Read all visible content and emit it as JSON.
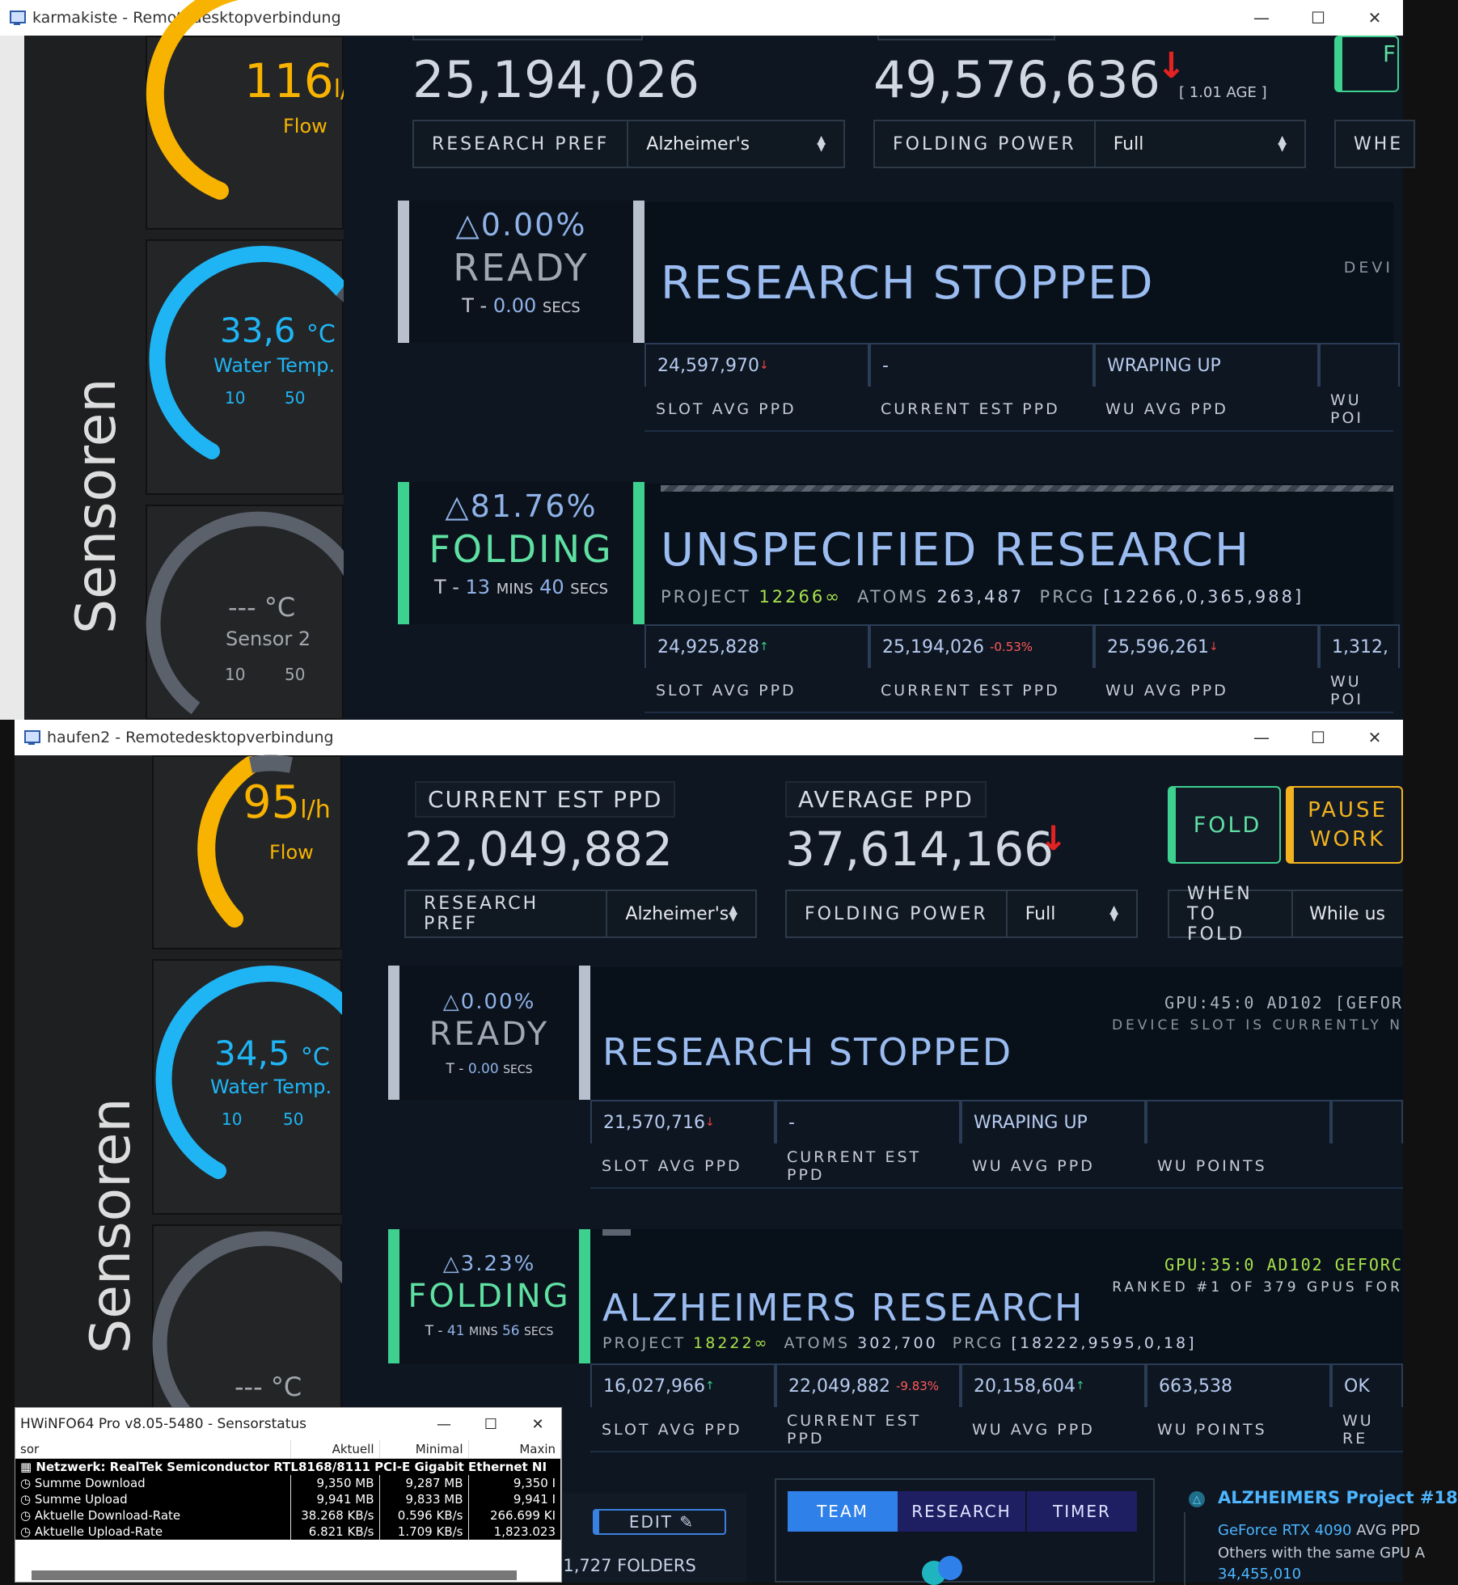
{
  "top_window": {
    "title": "karmakiste - Remotedesktopverbindung",
    "sensors": {
      "col_label": "Sensoren",
      "flow": {
        "value": "116",
        "unit": "l/h",
        "label": "Flow",
        "level": 0.7
      },
      "water": {
        "value": "33,6",
        "unit": "°C",
        "label": "Water Temp.",
        "tick_min": "10",
        "tick_max": "50",
        "level": 0.59
      },
      "sensor2": {
        "value": "---",
        "unit": "°C",
        "label": "Sensor 2",
        "tick_min": "10",
        "tick_max": "50"
      }
    },
    "current_ppd": "25,194,026",
    "average_ppd": "49,576,636",
    "age_note": "[ 1.01 AGE ]",
    "research_pref": {
      "label": "RESEARCH PREF",
      "value": "Alzheimer's"
    },
    "folding_power": {
      "label": "FOLDING POWER",
      "value": "Full"
    },
    "when_to_fold_partial": "WHE",
    "fold_partial": "F",
    "slot1": {
      "pct": "0.00%",
      "state": "READY",
      "eta_prefix": "T - ",
      "eta_value": "0.00",
      "eta_unit": "SECS",
      "title": "RESEARCH STOPPED",
      "device_partial": "DEVI",
      "stats": [
        "24,597,970",
        "-",
        "WRAPING UP",
        ""
      ],
      "labels": [
        "SLOT AVG PPD",
        "CURRENT EST PPD",
        "WU AVG PPD",
        "WU POI"
      ]
    },
    "slot2": {
      "pct": "81.76%",
      "state": "FOLDING",
      "eta_prefix": "T - ",
      "eta_v1": "13",
      "eta_u1": "MINS",
      "eta_v2": "40",
      "eta_u2": "SECS",
      "title": "UNSPECIFIED RESEARCH",
      "project_label": "PROJECT",
      "project": "12266",
      "atoms_label": "ATOMS",
      "atoms": "263,487",
      "prcg_label": "PRCG",
      "prcg": "[12266,0,365,988]",
      "stats": [
        "24,925,828",
        "25,194,026",
        "25,596,261",
        "1,312,"
      ],
      "current_delta": "-0.53%",
      "labels": [
        "SLOT AVG PPD",
        "CURRENT EST PPD",
        "WU AVG PPD",
        "WU POI"
      ]
    }
  },
  "bottom_window": {
    "title": "haufen2 - Remotedesktopverbindung",
    "sensors": {
      "col_label": "Sensoren",
      "flow": {
        "value": "95",
        "unit": "l/h",
        "label": "Flow",
        "level": 0.6
      },
      "water": {
        "value": "34,5",
        "unit": "°C",
        "label": "Water Temp.",
        "tick_min": "10",
        "tick_max": "50",
        "level": 0.61
      },
      "sensor2": {
        "value": "---",
        "unit": "°C"
      }
    },
    "current_ppd_label": "CURRENT EST PPD",
    "current_ppd": "22,049,882",
    "average_ppd_label": "AVERAGE PPD",
    "average_ppd": "37,614,166",
    "fold_button": "FOLD",
    "pause_button_l1": "PAUSE",
    "pause_button_l2": "WORK",
    "research_pref": {
      "label": "RESEARCH PREF",
      "value": "Alzheimer's"
    },
    "folding_power": {
      "label": "FOLDING POWER",
      "value": "Full"
    },
    "when_to_fold": {
      "label": "WHEN TO FOLD",
      "value": "While us"
    },
    "slot1": {
      "pct": "0.00%",
      "state": "READY",
      "eta_prefix": "T - ",
      "eta_value": "0.00",
      "eta_unit": "SECS",
      "title": "RESEARCH STOPPED",
      "device": "GPU:45:0 AD102 [GEFOR",
      "device_note": "DEVICE SLOT IS CURRENTLY N",
      "stats": [
        "21,570,716",
        "-",
        "WRAPING UP",
        "",
        ""
      ],
      "labels": [
        "SLOT AVG PPD",
        "CURRENT EST PPD",
        "WU AVG PPD",
        "WU POINTS"
      ]
    },
    "slot2": {
      "pct": "3.23%",
      "state": "FOLDING",
      "eta_prefix": "T - ",
      "eta_v1": "41",
      "eta_u1": "MINS",
      "eta_v2": "56",
      "eta_u2": "SECS",
      "title": "ALZHEIMERS RESEARCH",
      "device": "GPU:35:0 AD102 GEFORC",
      "rank": "RANKED #1 OF 379 GPUS FOR",
      "project_label": "PROJECT",
      "project": "18222",
      "atoms_label": "ATOMS",
      "atoms": "302,700",
      "prcg_label": "PRCG",
      "prcg": "[18222,9595,0,18]",
      "stats": [
        "16,027,966",
        "22,049,882",
        "20,158,604",
        "663,538",
        "OK"
      ],
      "current_delta": "-9.83%",
      "labels": [
        "SLOT AVG PPD",
        "CURRENT EST PPD",
        "WU AVG PPD",
        "WU POINTS",
        "WU RE"
      ]
    },
    "edit_button": "EDIT",
    "folders": "01,727 FOLDERS",
    "tabs": [
      "TEAM",
      "RESEARCH",
      "TIMER"
    ],
    "project_panel": {
      "title": "ALZHEIMERS Project #18",
      "line1_gpu": "GeForce RTX 4090",
      "line1_rest": "AVG PPD",
      "line2": "Others with the same GPU A",
      "line3": "34,455,010"
    }
  },
  "hwinfo": {
    "title": "HWiNFO64 Pro v8.05-5480 - Sensorstatus",
    "columns": [
      "sor",
      "Aktuell",
      "Minimal",
      "Maxin"
    ],
    "group": "Netzwerk: RealTek Semiconductor RTL8168/8111 PCI-E Gigabit Ethernet NI",
    "rows": [
      {
        "name": "Summe Download",
        "cur": "9,350 MB",
        "min": "9,287 MB",
        "max": "9,350 I"
      },
      {
        "name": "Summe Upload",
        "cur": "9,941 MB",
        "min": "9,833 MB",
        "max": "9,941 I"
      },
      {
        "name": "Aktuelle Download-Rate",
        "cur": "38.268 KB/s",
        "min": "0.596 KB/s",
        "max": "266.699 KI"
      },
      {
        "name": "Aktuelle Upload-Rate",
        "cur": "6.821 KB/s",
        "min": "1.709 KB/s",
        "max": "1,823.023"
      }
    ]
  },
  "colors": {
    "accent_blue": "#8fb2e8",
    "green": "#3dd08f",
    "orange": "#f3b21f",
    "gauge_blue": "#1fb5f5",
    "red": "#e44"
  }
}
